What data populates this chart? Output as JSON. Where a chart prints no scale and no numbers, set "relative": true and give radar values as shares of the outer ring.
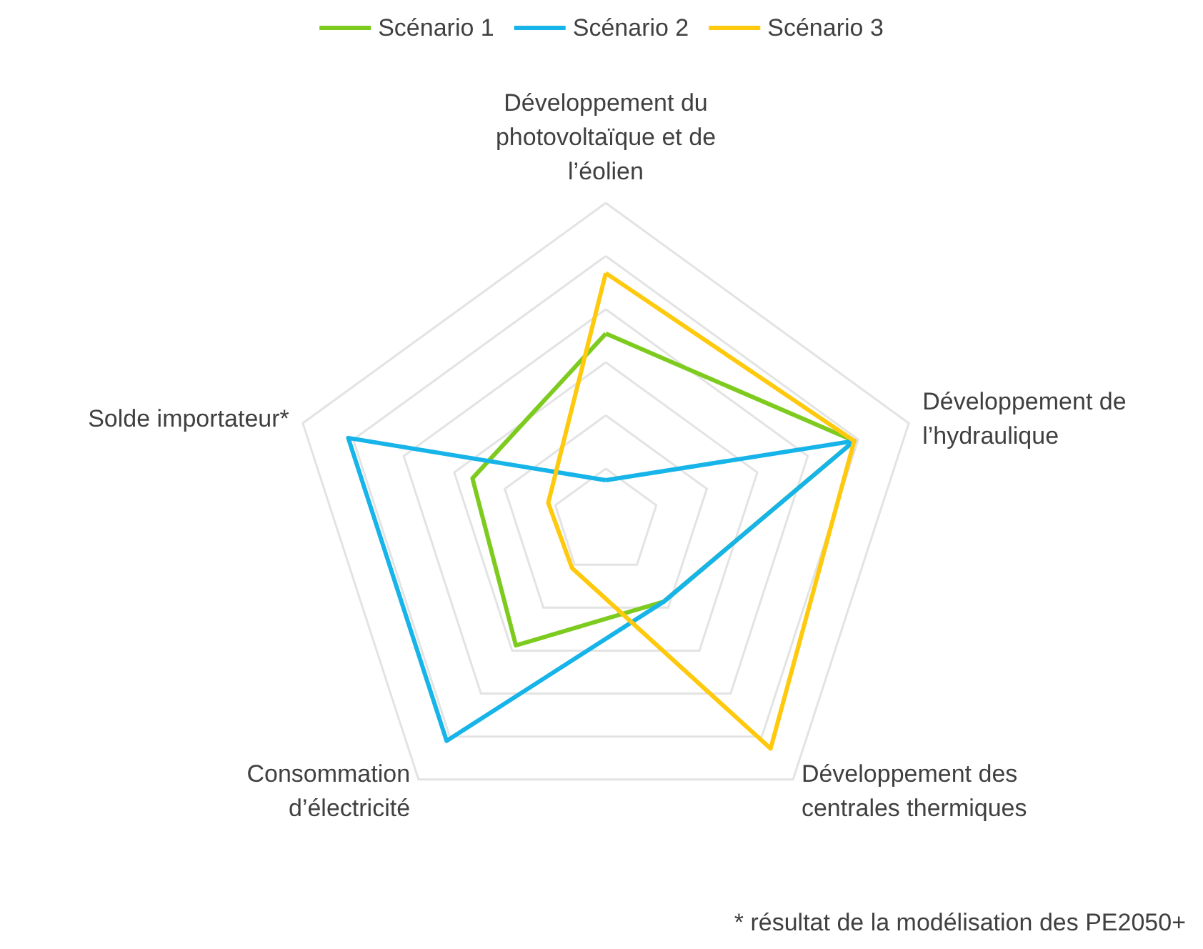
{
  "chart_data": {
    "type": "radar",
    "relative": true,
    "legend": "top",
    "categories": [
      "Développement du photovoltaïque et de l’éolien",
      "Développement de l’hydraulique",
      "Développement des centrales thermiques",
      "Consommation d’électricité",
      "Solde importateur*"
    ],
    "series": [
      {
        "name": "Scénario 1",
        "color": "#7ecb20",
        "values": [
          0.59,
          0.82,
          0.31,
          0.48,
          0.44
        ]
      },
      {
        "name": "Scénario 2",
        "color": "#16b4e8",
        "values": [
          0.13,
          0.82,
          0.31,
          0.85,
          0.85
        ]
      },
      {
        "name": "Scénario 3",
        "color": "#ffc90e",
        "values": [
          0.78,
          0.82,
          0.88,
          0.18,
          0.19
        ]
      }
    ],
    "annotations": [
      "* résultat de la modélisation des PE2050+"
    ]
  }
}
